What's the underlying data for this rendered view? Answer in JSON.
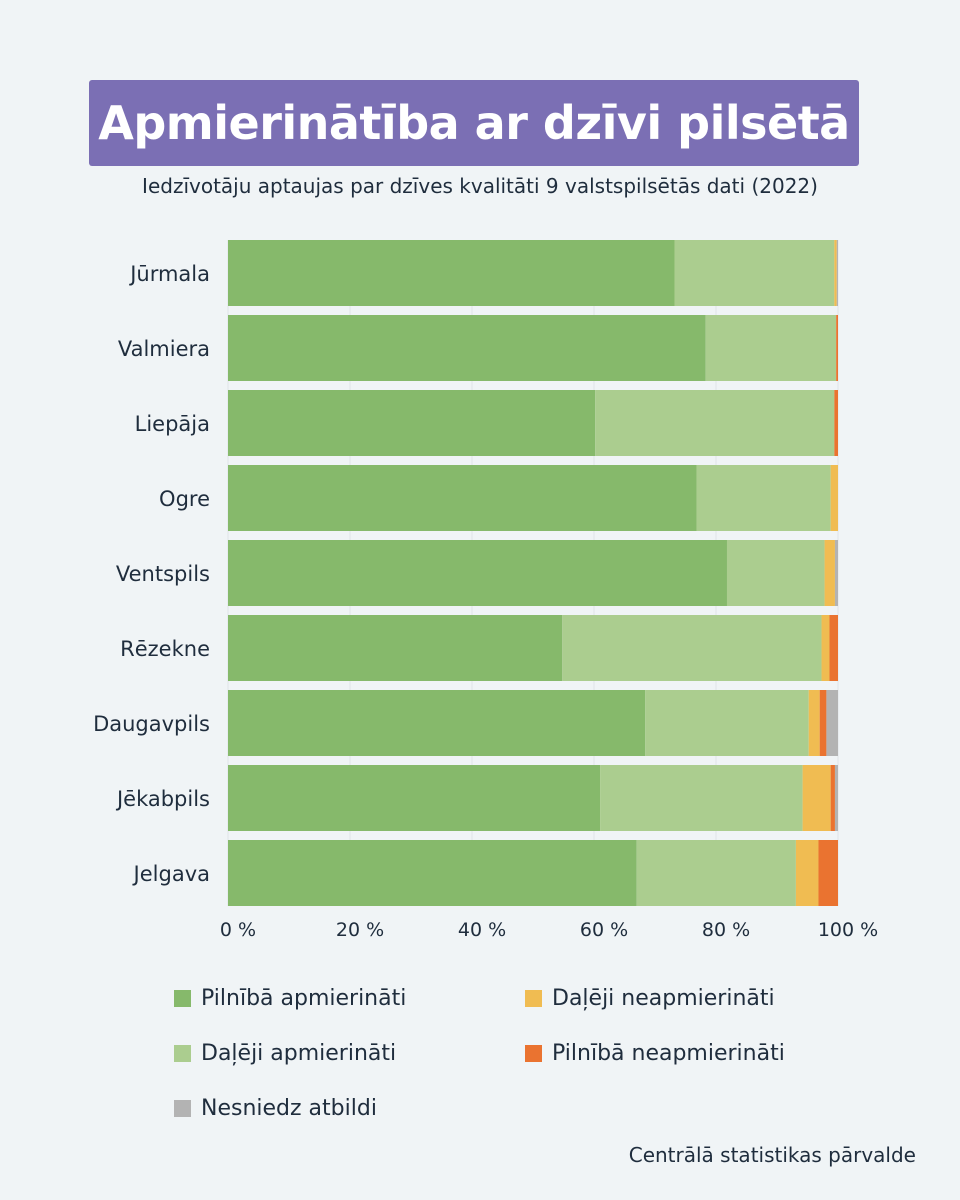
{
  "header": {
    "title": "Apmierinātība ar dzīvi pilsētā",
    "subtitle": "Iedzīvotāju aptaujas par dzīves kvalitāti 9 valstspilsētās dati (2022)"
  },
  "source": "Centrālā statistikas pārvalde",
  "chart_data": {
    "type": "bar",
    "orientation": "horizontal",
    "stacked": true,
    "categories": [
      "Jūrmala",
      "Valmiera",
      "Liepāja",
      "Ogre",
      "Ventspils",
      "Rēzekne",
      "Daugavpils",
      "Jēkabpils",
      "Jelgava"
    ],
    "series": [
      {
        "name": "Pilnībā apmierināti",
        "color": "#86b96b",
        "values": [
          73.2,
          78.3,
          60.2,
          76.8,
          81.8,
          54.8,
          68.4,
          61.0,
          67.0
        ]
      },
      {
        "name": "Daļēji apmierināti",
        "color": "#abcd8f",
        "values": [
          26.2,
          21.4,
          39.2,
          22.0,
          16.0,
          42.5,
          26.8,
          33.2,
          26.1
        ]
      },
      {
        "name": "Daļēji neapmierināti",
        "color": "#f0bc52",
        "values": [
          0.4,
          0.0,
          0.0,
          1.2,
          1.7,
          1.3,
          1.8,
          4.6,
          3.7
        ]
      },
      {
        "name": "Pilnībā neapmierināti",
        "color": "#ea7330",
        "values": [
          0.0,
          0.3,
          0.6,
          0.0,
          0.0,
          1.4,
          1.1,
          0.7,
          3.2
        ]
      },
      {
        "name": "Nesniedz atbildi",
        "color": "#b3b3b3",
        "values": [
          0.2,
          0.0,
          0.0,
          0.0,
          0.5,
          0.0,
          1.9,
          0.5,
          0.0
        ]
      }
    ],
    "xlim": [
      0,
      100
    ],
    "x_ticks": [
      "0 %",
      "20 %",
      "40 %",
      "60 %",
      "80 %",
      "100 %"
    ],
    "grid": true,
    "legend_position": "bottom"
  }
}
